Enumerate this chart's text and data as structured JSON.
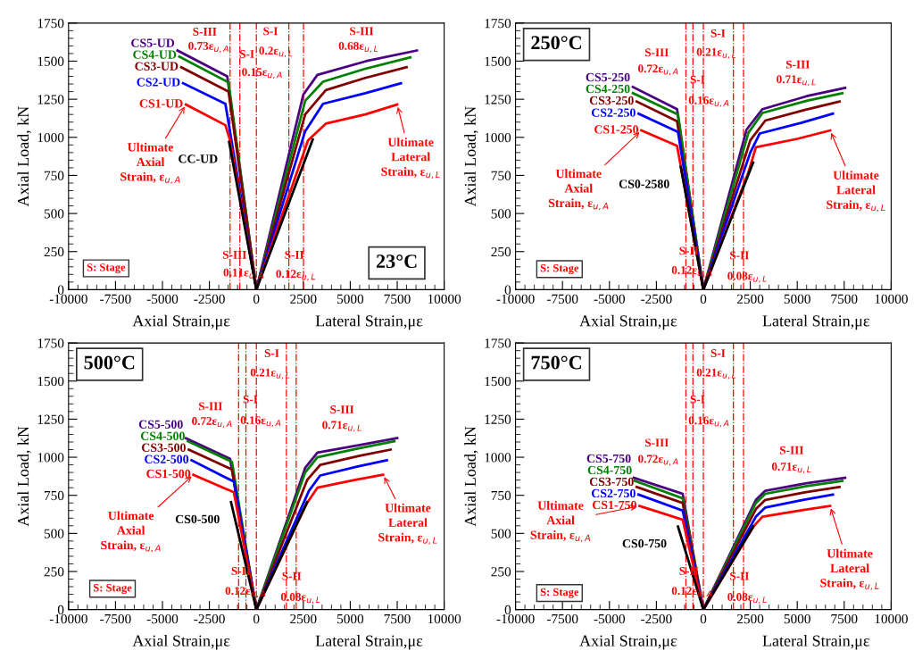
{
  "chart_data": [
    {
      "type": "line",
      "title": "23°C",
      "xlabel": "Axial Strain,με",
      "ylabel": "Axial Load, kN",
      "xlim": [
        -10000,
        10000
      ],
      "xticks": [
        -10000,
        -7500,
        -5000,
        -2500,
        0,
        2500,
        5000,
        7500,
        10000
      ],
      "ylim": [
        0,
        1750
      ],
      "yticks": [
        0,
        250,
        500,
        750,
        1000,
        1250,
        1500,
        1750
      ],
      "grid": false,
      "series": [
        {
          "name": "CS5-UD",
          "color": "#4b0082",
          "x": [
            -4200,
            -1550,
            0,
            2500,
            3250,
            5850,
            8550
          ],
          "values": [
            1570,
            1400,
            0,
            1280,
            1410,
            1500,
            1570
          ]
        },
        {
          "name": "CS4-UD",
          "color": "#008000",
          "x": [
            -4100,
            -1480,
            0,
            2600,
            3550,
            5800,
            8200
          ],
          "values": [
            1530,
            1360,
            0,
            1240,
            1365,
            1450,
            1525
          ]
        },
        {
          "name": "CS3-UD",
          "color": "#800000",
          "x": [
            -4000,
            -1480,
            0,
            2600,
            3700,
            5800,
            8000
          ],
          "values": [
            1460,
            1300,
            0,
            1150,
            1310,
            1390,
            1460
          ]
        },
        {
          "name": "CS2-UD",
          "color": "#0000ff",
          "x": [
            -3900,
            -1650,
            0,
            2600,
            3550,
            5800,
            7700
          ],
          "values": [
            1355,
            1220,
            0,
            1040,
            1220,
            1290,
            1355
          ]
        },
        {
          "name": "CS1-UD",
          "color": "#ff0000",
          "x": [
            -3750,
            -1650,
            -1400,
            0,
            2750,
            3700,
            5800,
            7500
          ],
          "values": [
            1215,
            1080,
            980,
            0,
            980,
            1090,
            1150,
            1215
          ]
        },
        {
          "name": "CC-UD",
          "color": "#000000",
          "x": [
            -1450,
            0,
            3000
          ],
          "values": [
            970,
            0,
            985
          ]
        }
      ],
      "ref_lines": [
        {
          "axis": "x",
          "value": -1400,
          "color": "#ff0000",
          "line_style": "dashdot"
        },
        {
          "axis": "x",
          "value": -880,
          "color": "#ff0000",
          "line_style": "dashdot"
        },
        {
          "axis": "x",
          "value": 0,
          "color": "#ff0000",
          "line_style": "dashdot"
        },
        {
          "axis": "x",
          "value": 1730,
          "color": "#ff0000",
          "line_style": "dashdot"
        },
        {
          "axis": "x",
          "value": 2510,
          "color": "#ff0000",
          "line_style": "dashdot"
        }
      ],
      "annotations": [
        "Lateral Strain,με",
        "S: Stage",
        {
          "text": "Ultimate\nAxial\nStrain, ε$_{u,A}$",
          "x": -3750,
          "y": 1215
        },
        {
          "text": "Ultimate\nLateral\nStrain, ε$_{u,L}$",
          "x": 7500,
          "y": 1215
        },
        "S-III",
        "0.73ε$_{u,A}$",
        "S-I",
        "0.15ε$_{u,A}$",
        "S-I",
        "0.2ε$_{u,L}$",
        "S-III",
        "0.68ε$_{u,L}$",
        "S-III",
        "0.11ε$_{u,A}$",
        "S-II",
        "0.12ε$_{u,L}$"
      ]
    },
    {
      "type": "line",
      "title": "250°C",
      "xlabel": "Axial Strain,με",
      "ylabel": "Axial Load, kN",
      "xlim": [
        -10000,
        10000
      ],
      "xticks": [
        -10000,
        -7500,
        -5000,
        -2500,
        0,
        2500,
        5000,
        7500,
        10000
      ],
      "ylim": [
        0,
        1750
      ],
      "yticks": [
        0,
        250,
        500,
        750,
        1000,
        1250,
        1500,
        1750
      ],
      "grid": false,
      "series": [
        {
          "name": "CS5-250",
          "color": "#4b0082",
          "x": [
            -3750,
            -1400,
            0,
            2300,
            3150,
            5500,
            7550
          ],
          "values": [
            1330,
            1185,
            0,
            1050,
            1185,
            1270,
            1325
          ]
        },
        {
          "name": "CS4-250",
          "color": "#008000",
          "x": [
            -3750,
            -1350,
            0,
            2400,
            3150,
            5500,
            7400
          ],
          "values": [
            1290,
            1150,
            0,
            1030,
            1160,
            1240,
            1290
          ]
        },
        {
          "name": "CS3-250",
          "color": "#800000",
          "x": [
            -3550,
            -1400,
            0,
            2500,
            3300,
            5400,
            7250
          ],
          "values": [
            1235,
            1105,
            0,
            980,
            1110,
            1180,
            1235
          ]
        },
        {
          "name": "CS2-250",
          "color": "#0000ff",
          "x": [
            -3450,
            -1350,
            0,
            2500,
            3000,
            5200,
            6900
          ],
          "values": [
            1155,
            1035,
            0,
            900,
            1025,
            1095,
            1155
          ]
        },
        {
          "name": "CS1-250",
          "color": "#ff0000",
          "x": [
            -3300,
            -1400,
            0,
            2400,
            2800,
            5000,
            6750
          ],
          "values": [
            1045,
            945,
            0,
            770,
            935,
            990,
            1045
          ]
        },
        {
          "name": "CS0-2580",
          "color": "#000000",
          "x": [
            -1200,
            0,
            2650
          ],
          "values": [
            805,
            0,
            835
          ]
        }
      ],
      "ref_lines": [
        {
          "axis": "x",
          "value": -930,
          "color": "#ff0000",
          "line_style": "dashdot"
        },
        {
          "axis": "x",
          "value": -555,
          "color": "#ff0000",
          "line_style": "dashdot"
        },
        {
          "axis": "x",
          "value": 0,
          "color": "#ff0000",
          "line_style": "dashdot"
        },
        {
          "axis": "x",
          "value": 1600,
          "color": "#ff0000",
          "line_style": "dashdot"
        },
        {
          "axis": "x",
          "value": 2140,
          "color": "#ff0000",
          "line_style": "dashdot"
        }
      ],
      "annotations": [
        "Lateral Strain,με",
        "S: Stage",
        {
          "text": "Ultimate\nAxial\nStrain, ε$_{u,A}$",
          "x": -3300,
          "y": 1045
        },
        {
          "text": "Ultimate\nLateral\nStrain, ε$_{u,L}$",
          "x": 6750,
          "y": 1045
        },
        "S-III",
        "0.72ε$_{u,A}$",
        "S-I",
        "0.16ε$_{u,A}$",
        "S-I",
        "0.21ε$_{u,L}$",
        "S-III",
        "0.71ε$_{u,L}$",
        "S-II",
        "0.12ε$_{u,A}$",
        "S-II",
        "0.08ε$_{u,L}$"
      ]
    },
    {
      "type": "line",
      "title": "500°C",
      "xlabel": "Axial Strain,με",
      "ylabel": "Axial Load, kN",
      "xlim": [
        -10000,
        10000
      ],
      "xticks": [
        -10000,
        -7500,
        -5000,
        -2500,
        0,
        2500,
        5000,
        7500,
        10000
      ],
      "ylim": [
        0,
        1750
      ],
      "yticks": [
        0,
        250,
        500,
        750,
        1000,
        1250,
        1500,
        1750
      ],
      "grid": false,
      "series": [
        {
          "name": "CS5-500",
          "color": "#4b0082",
          "x": [
            -3750,
            -1400,
            0,
            2600,
            3250,
            5500,
            7500
          ],
          "values": [
            1125,
            990,
            0,
            930,
            1030,
            1080,
            1125
          ]
        },
        {
          "name": "CS4-500",
          "color": "#008000",
          "x": [
            -3650,
            -1300,
            0,
            2600,
            3250,
            5500,
            7350
          ],
          "values": [
            1105,
            970,
            0,
            900,
            1000,
            1060,
            1105
          ]
        },
        {
          "name": "CS3-500",
          "color": "#800000",
          "x": [
            -3600,
            -1300,
            0,
            2700,
            3400,
            5500,
            7150
          ],
          "values": [
            1050,
            920,
            0,
            850,
            950,
            1010,
            1050
          ]
        },
        {
          "name": "CS2-500",
          "color": "#0000ff",
          "x": [
            -3450,
            -1200,
            0,
            2800,
            3400,
            5400,
            6950
          ],
          "values": [
            980,
            840,
            0,
            780,
            880,
            940,
            980
          ]
        },
        {
          "name": "CS1-500",
          "color": "#ff0000",
          "x": [
            -3350,
            -1200,
            0,
            2700,
            3250,
            5200,
            6750
          ],
          "values": [
            885,
            770,
            0,
            700,
            800,
            850,
            885
          ]
        },
        {
          "name": "CS0-500",
          "color": "#000000",
          "x": [
            -1350,
            0,
            2700
          ],
          "values": [
            705,
            0,
            705
          ]
        }
      ],
      "ref_lines": [
        {
          "axis": "x",
          "value": -945,
          "color": "#ff0000",
          "line_style": "dashdot"
        },
        {
          "axis": "x",
          "value": -555,
          "color": "#ff0000",
          "line_style": "dashdot"
        },
        {
          "axis": "x",
          "value": 0,
          "color": "#ff0000",
          "line_style": "dashdot"
        },
        {
          "axis": "x",
          "value": 1600,
          "color": "#ff0000",
          "line_style": "dashdot"
        },
        {
          "axis": "x",
          "value": 2120,
          "color": "#ff0000",
          "line_style": "dashdot"
        }
      ],
      "annotations": [
        "Lateral Strain,με",
        "S: Stage",
        {
          "text": "Ultimate\nAxial\nStrain, ε$_{u,A}$",
          "x": -3350,
          "y": 885
        },
        {
          "text": "Ultimate\nLateral\nStrain, ε$_{u,L}$",
          "x": 6750,
          "y": 885
        },
        "S-III",
        "0.72ε$_{u,A}$",
        "S-I",
        "0.16ε$_{u,A}$",
        "S-I",
        "0.21ε$_{u,L}$",
        "S-III",
        "0.71ε$_{u,L}$",
        "S-II",
        "0.12ε$_{u,A}$",
        "S-II",
        "0.08ε$_{u,L}$"
      ]
    },
    {
      "type": "line",
      "title": "750°C",
      "xlabel": "Axial Strain,με",
      "ylabel": "Axial Load, kN",
      "xlim": [
        -10000,
        10000
      ],
      "xticks": [
        -10000,
        -7500,
        -5000,
        -2500,
        0,
        2500,
        5000,
        7500,
        10000
      ],
      "ylim": [
        0,
        1750
      ],
      "yticks": [
        0,
        250,
        500,
        750,
        1000,
        1250,
        1500,
        1750
      ],
      "grid": false,
      "series": [
        {
          "name": "CS5-750",
          "color": "#4b0082",
          "x": [
            -3700,
            -1100,
            0,
            2800,
            3300,
            5500,
            7550
          ],
          "values": [
            865,
            760,
            0,
            720,
            780,
            830,
            865
          ]
        },
        {
          "name": "CS4-750",
          "color": "#008000",
          "x": [
            -3650,
            -1100,
            0,
            2800,
            3300,
            5500,
            7400
          ],
          "values": [
            845,
            730,
            0,
            700,
            760,
            810,
            845
          ]
        },
        {
          "name": "CS3-750",
          "color": "#800000",
          "x": [
            -3550,
            -1100,
            0,
            2800,
            3300,
            5400,
            7250
          ],
          "values": [
            805,
            700,
            0,
            660,
            720,
            770,
            805
          ]
        },
        {
          "name": "CS2-750",
          "color": "#0000ff",
          "x": [
            -3450,
            -1100,
            0,
            2800,
            3300,
            5300,
            6900
          ],
          "values": [
            755,
            650,
            0,
            610,
            670,
            720,
            755
          ]
        },
        {
          "name": "CS1-750",
          "color": "#ff0000",
          "x": [
            -3400,
            -1100,
            0,
            2700,
            3150,
            5100,
            6750
          ],
          "values": [
            680,
            590,
            0,
            550,
            610,
            650,
            680
          ]
        },
        {
          "name": "CS0-750",
          "color": "#000000",
          "x": [
            -1350,
            0,
            2650
          ],
          "values": [
            545,
            0,
            545
          ]
        }
      ],
      "ref_lines": [
        {
          "axis": "x",
          "value": -930,
          "color": "#ff0000",
          "line_style": "dashdot"
        },
        {
          "axis": "x",
          "value": -555,
          "color": "#ff0000",
          "line_style": "dashdot"
        },
        {
          "axis": "x",
          "value": 0,
          "color": "#ff0000",
          "line_style": "dashdot"
        },
        {
          "axis": "x",
          "value": 1600,
          "color": "#ff0000",
          "line_style": "dashdot"
        },
        {
          "axis": "x",
          "value": 2140,
          "color": "#ff0000",
          "line_style": "dashdot"
        }
      ],
      "annotations": [
        "Lateral Strain,με",
        "S: Stage",
        {
          "text": "Ultimate\nAxial\nStrain, ε$_{u,A}$",
          "x": -3400,
          "y": 680
        },
        {
          "text": "Ultimate\nLateral\nStrain, ε$_{u,L}$",
          "x": 6750,
          "y": 680
        },
        "S-III",
        "0.72ε$_{u,A}$",
        "S-I",
        "0.16ε$_{u,A}$",
        "S-I",
        "0.21ε$_{u,L}$",
        "S-III",
        "0.71ε$_{u,L}$",
        "S-II",
        "0.12ε$_{u,A}$",
        "S-II",
        "0.08ε$_{u,L}$"
      ]
    }
  ]
}
